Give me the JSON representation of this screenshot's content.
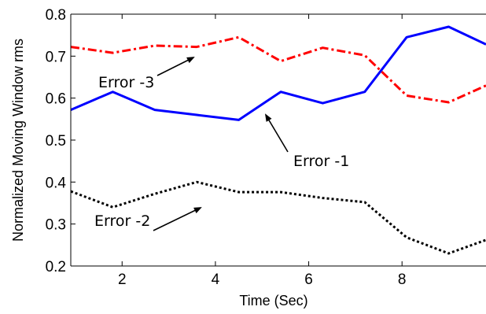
{
  "chart_data": {
    "type": "line",
    "xlabel": "Time (Sec)",
    "ylabel": "Normalized Moving Window rms",
    "xlim": [
      0.9,
      9.8
    ],
    "ylim": [
      0.2,
      0.8
    ],
    "xticks": [
      2,
      4,
      6,
      8
    ],
    "yticks": [
      0.2,
      0.3,
      0.4,
      0.5,
      0.6,
      0.7,
      0.8
    ],
    "xtick_labels": [
      "2",
      "4",
      "6",
      "8"
    ],
    "ytick_labels": [
      "0.2",
      "0.3",
      "0.4",
      "0.5",
      "0.6",
      "0.7",
      "0.8"
    ],
    "grid": false,
    "series": [
      {
        "color": "#ff0000",
        "style": "dash-dot",
        "x": [
          0.9,
          1.8,
          2.7,
          3.6,
          4.5,
          5.4,
          6.3,
          7.2,
          8.1,
          9.0,
          9.8
        ],
        "y": [
          0.722,
          0.708,
          0.725,
          0.722,
          0.745,
          0.688,
          0.72,
          0.702,
          0.606,
          0.59,
          0.63
        ]
      },
      {
        "color": "#0000ff",
        "style": "solid",
        "x": [
          0.9,
          1.8,
          2.7,
          3.6,
          4.5,
          5.4,
          6.3,
          7.2,
          8.1,
          9.0,
          9.8
        ],
        "y": [
          0.572,
          0.615,
          0.572,
          0.56,
          0.548,
          0.615,
          0.588,
          0.615,
          0.745,
          0.77,
          0.728
        ]
      },
      {
        "color": "#000000",
        "style": "dotted",
        "x": [
          0.9,
          1.8,
          2.7,
          3.6,
          4.5,
          5.4,
          6.3,
          7.2,
          8.1,
          9.0,
          9.8
        ],
        "y": [
          0.378,
          0.34,
          0.372,
          0.4,
          0.376,
          0.376,
          0.362,
          0.352,
          0.268,
          0.23,
          0.262
        ]
      }
    ],
    "annotations": [
      {
        "text": "Error -3",
        "arrow_to": [
          3.8,
          0.74
        ]
      },
      {
        "text": "Error -1",
        "arrow_to": [
          5.0,
          0.565
        ]
      },
      {
        "text": "Error -2",
        "arrow_to": [
          3.8,
          0.365
        ]
      }
    ]
  }
}
